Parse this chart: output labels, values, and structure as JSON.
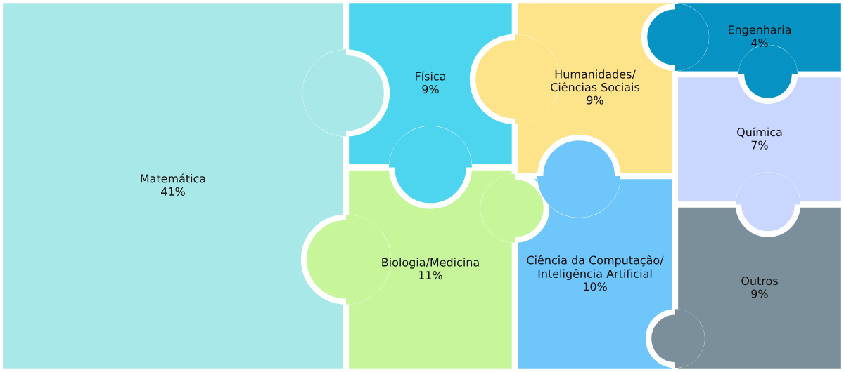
{
  "chart_data": {
    "type": "other",
    "categories": [
      "Matemática",
      "Física",
      "Biologia/Medicina",
      "Humanidades/\nCiências Sociais",
      "Engenharia",
      "Química",
      "Ciência da Computação/\nInteligência Artificial",
      "Outros"
    ],
    "values": [
      41,
      9,
      11,
      9,
      4,
      7,
      10,
      9
    ],
    "value_labels": [
      "41%",
      "9%",
      "11%",
      "9%",
      "4%",
      "7%",
      "10%",
      "9%"
    ],
    "colors": [
      "#a8e8e8",
      "#4dd4ee",
      "#c6f59a",
      "#fde38a",
      "#0693c4",
      "#c9d6ff",
      "#6ec6fb",
      "#7a8f99"
    ]
  }
}
